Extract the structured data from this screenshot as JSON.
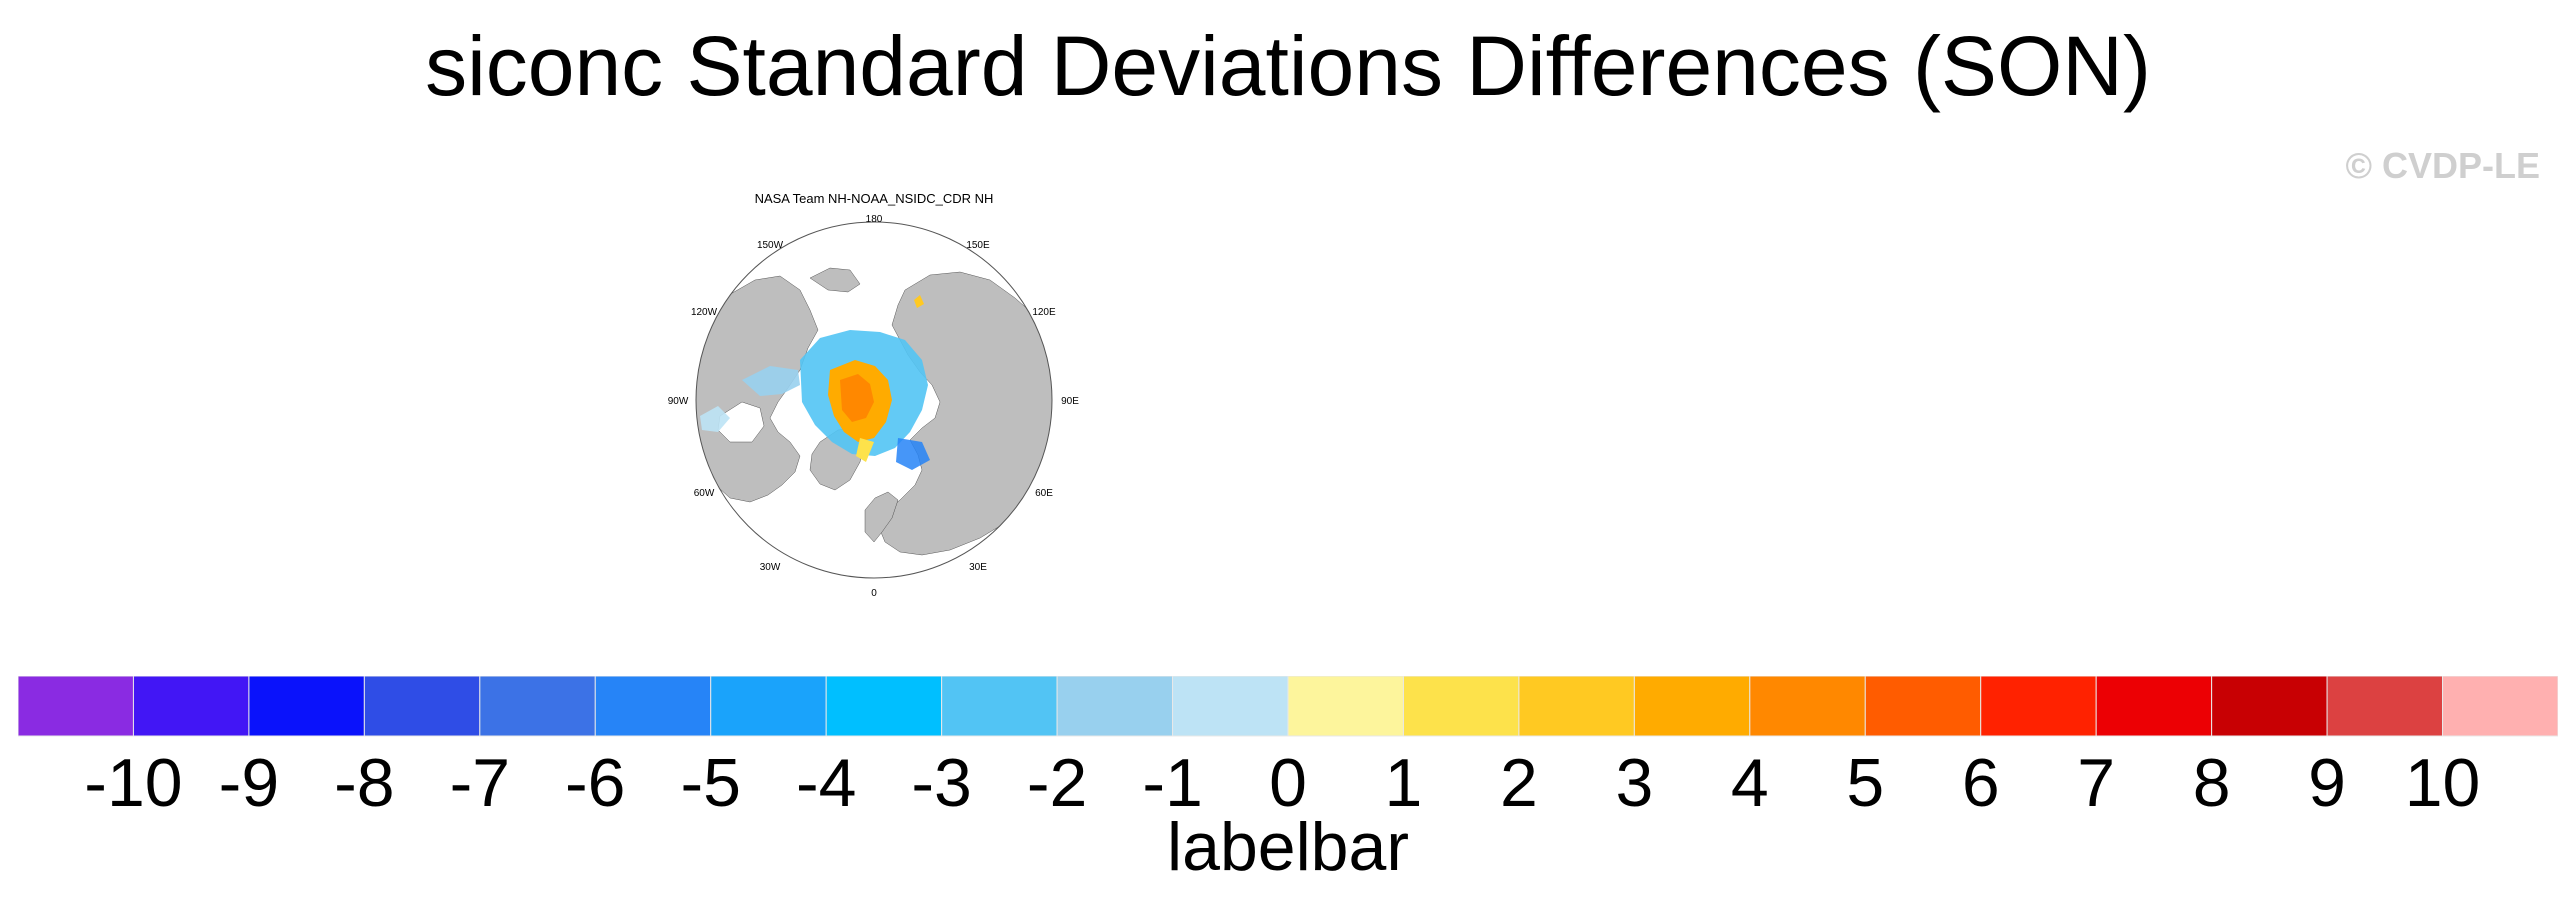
{
  "title": "siconc Standard Deviations Differences (SON)",
  "credit": "© CVDP-LE",
  "map": {
    "panel_title": "NASA Team NH-NOAA_NSIDC_CDR NH",
    "projection": "north-polar-stereographic",
    "land_color": "#bebebe",
    "ocean_color": "#ffffff",
    "longitude_labels": [
      "180",
      "150E",
      "120E",
      "90E",
      "60E",
      "30E",
      "0",
      "30W",
      "60W",
      "90W",
      "120W",
      "150W"
    ]
  },
  "colorbar": {
    "title": "labelbar",
    "tick_labels": [
      "-10",
      "-9",
      "-8",
      "-7",
      "-6",
      "-5",
      "-4",
      "-3",
      "-2",
      "-1",
      "0",
      "1",
      "2",
      "3",
      "4",
      "5",
      "6",
      "7",
      "8",
      "9",
      "10"
    ],
    "colors": [
      "#8a2be2",
      "#4216f5",
      "#0a12fb",
      "#2f4de6",
      "#3c72e6",
      "#2684f7",
      "#1aa3fb",
      "#00bfff",
      "#52c4f4",
      "#98d0ee",
      "#bde3f5",
      "#fdf59c",
      "#fde24b",
      "#ffc922",
      "#ffab00",
      "#ff8800",
      "#ff5c00",
      "#ff2200",
      "#ec0004",
      "#c80003",
      "#dc4141",
      "#ffb0b0"
    ]
  }
}
